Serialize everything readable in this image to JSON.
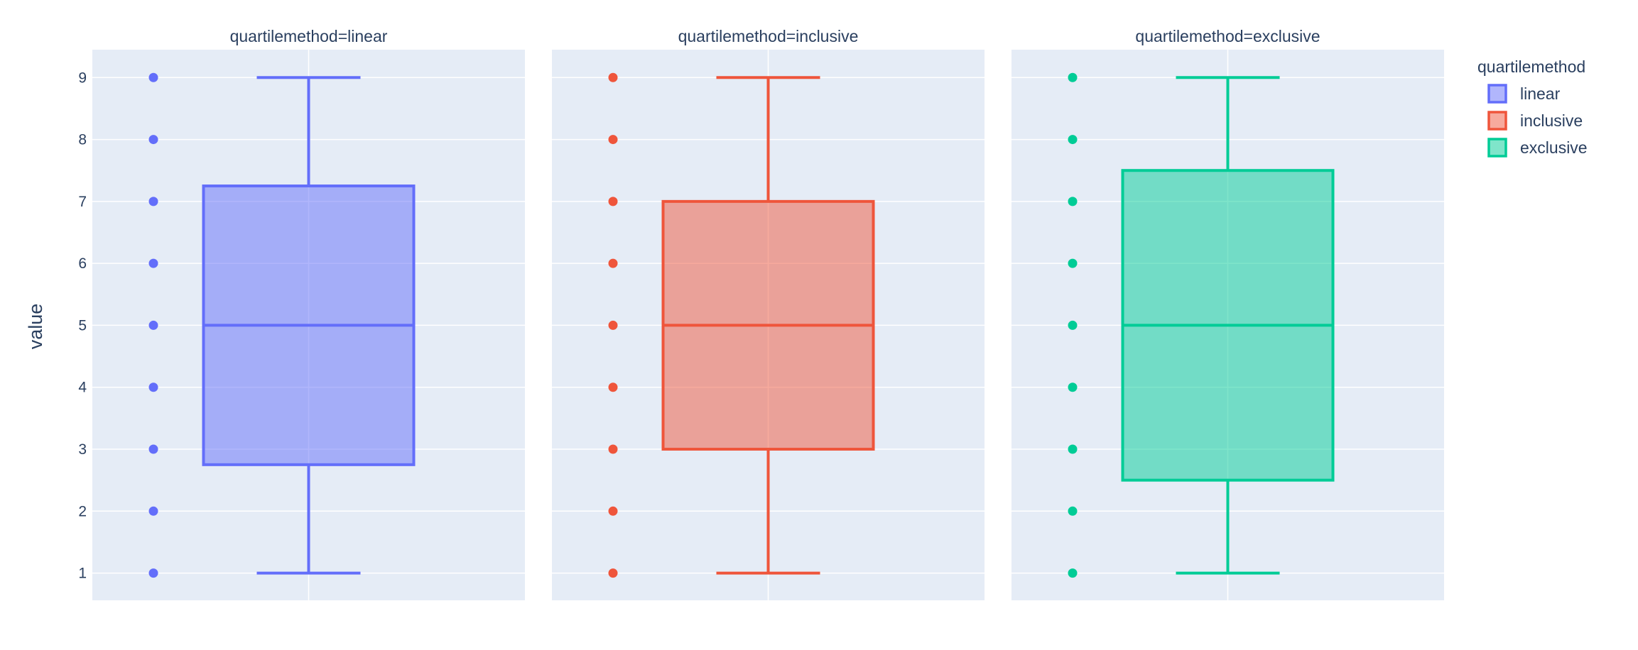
{
  "chart_data": {
    "type": "box",
    "ylabel": "value",
    "ylim": [
      0.56,
      9.45
    ],
    "yticks": [
      1,
      2,
      3,
      4,
      5,
      6,
      7,
      8,
      9
    ],
    "grid": true,
    "legend": {
      "title": "quartilemethod",
      "placement": "top-right",
      "entries": [
        "linear",
        "inclusive",
        "exclusive"
      ]
    },
    "panels": [
      {
        "title": "quartilemethod=linear",
        "name": "linear",
        "color": "#636efa",
        "points": [
          1,
          2,
          3,
          4,
          5,
          6,
          7,
          8,
          9
        ],
        "min": 1,
        "q1": 2.75,
        "median": 5,
        "q3": 7.25,
        "max": 9
      },
      {
        "title": "quartilemethod=inclusive",
        "name": "inclusive",
        "color": "#ef553b",
        "points": [
          1,
          2,
          3,
          4,
          5,
          6,
          7,
          8,
          9
        ],
        "min": 1,
        "q1": 3,
        "median": 5,
        "q3": 7,
        "max": 9
      },
      {
        "title": "quartilemethod=exclusive",
        "name": "exclusive",
        "color": "#00cc96",
        "points": [
          1,
          2,
          3,
          4,
          5,
          6,
          7,
          8,
          9
        ],
        "min": 1,
        "q1": 2.5,
        "median": 5,
        "q3": 7.5,
        "max": 9
      }
    ]
  }
}
